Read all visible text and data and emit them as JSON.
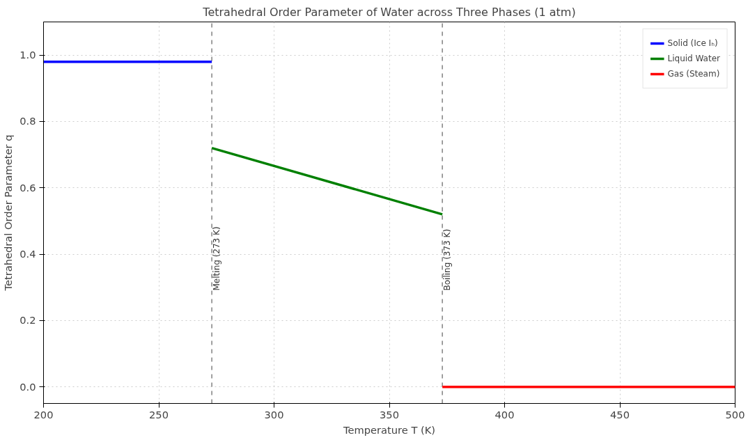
{
  "chart_data": {
    "type": "line",
    "title": "Tetrahedral Order Parameter of Water across Three Phases (1 atm)",
    "xlabel": "Temperature T (K)",
    "ylabel": "Tetrahedral Order Parameter q",
    "series": [
      {
        "name": "Solid (Ice Iₕ)",
        "color": "#0000ff",
        "x": [
          200,
          273
        ],
        "values": [
          0.98,
          0.98
        ]
      },
      {
        "name": "Liquid Water",
        "color": "#008000",
        "x": [
          273,
          373
        ],
        "values": [
          0.72,
          0.52
        ]
      },
      {
        "name": "Gas (Steam)",
        "color": "#ff0000",
        "x": [
          373,
          500
        ],
        "values": [
          0.0,
          0.0
        ]
      }
    ],
    "xlim": [
      200,
      500
    ],
    "xticks": [
      200,
      250,
      300,
      350,
      400,
      450,
      500
    ],
    "ylim": [
      -0.05,
      1.1
    ],
    "yticks": [
      {
        "value": 0,
        "label": "0.0"
      },
      {
        "value": 0.2,
        "label": "0.2"
      },
      {
        "value": 0.4,
        "label": "0.4"
      },
      {
        "value": 0.6,
        "label": "0.6"
      },
      {
        "value": 0.8,
        "label": "0.8"
      },
      {
        "value": 1.0,
        "label": "1.0"
      }
    ],
    "ref_lines": [
      {
        "axis": "x",
        "value": 273,
        "label": "Melting (273 K)",
        "color": "#808080",
        "line_style": "dashed"
      },
      {
        "axis": "x",
        "value": 373,
        "label": "Boiling (373 K)",
        "color": "#808080",
        "line_style": "dashed"
      }
    ],
    "grid": true,
    "legend": "top right",
    "line_style": "solid",
    "marker": "none"
  }
}
